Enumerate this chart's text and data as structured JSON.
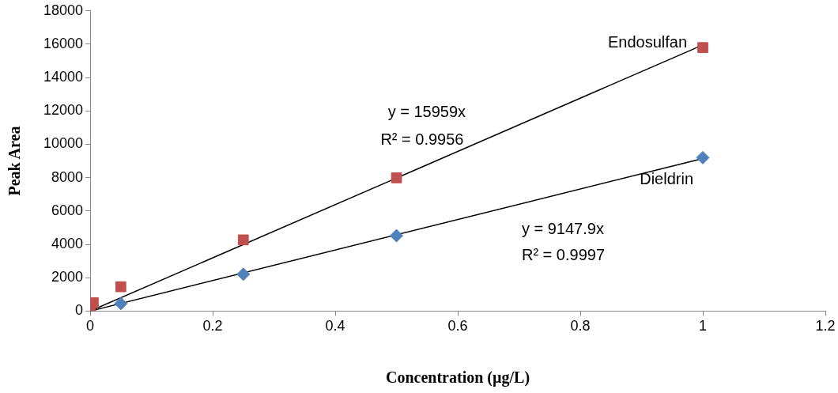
{
  "chart_data": {
    "type": "scatter",
    "xlabel": "Concentration (µg/L)",
    "ylabel": "Peak Area",
    "xlim": [
      0,
      1.2
    ],
    "xticks": [
      0,
      0.2,
      0.4,
      0.6,
      0.8,
      1,
      1.2
    ],
    "ylim": [
      0,
      18000
    ],
    "yticks": [
      0,
      2000,
      4000,
      6000,
      8000,
      10000,
      12000,
      14000,
      16000,
      18000
    ],
    "grid": false,
    "legend": false,
    "series": [
      {
        "name": "Endosulfan",
        "color": "#c0504d",
        "marker": "square",
        "x": [
          0,
          0.005,
          0.05,
          0.25,
          0.5,
          1
        ],
        "values": [
          0,
          500,
          1460,
          4270,
          7990,
          15800
        ]
      },
      {
        "name": "Dieldrin",
        "color": "#4f81bd",
        "marker": "diamond",
        "x": [
          0,
          0.05,
          0.25,
          0.5,
          1
        ],
        "values": [
          0,
          450,
          2210,
          4520,
          9200
        ]
      },
      {
        "type": "line",
        "color": "#000000",
        "marker": "none",
        "x": [
          0,
          1
        ],
        "values": [
          0,
          15959
        ]
      },
      {
        "type": "line",
        "color": "#000000",
        "marker": "none",
        "x": [
          0,
          1
        ],
        "values": [
          0,
          9147.9
        ]
      }
    ],
    "annotations": [
      "y = 15959x",
      "R² = 0.9956",
      "y = 9147.9x",
      "R² = 0.9997"
    ]
  }
}
